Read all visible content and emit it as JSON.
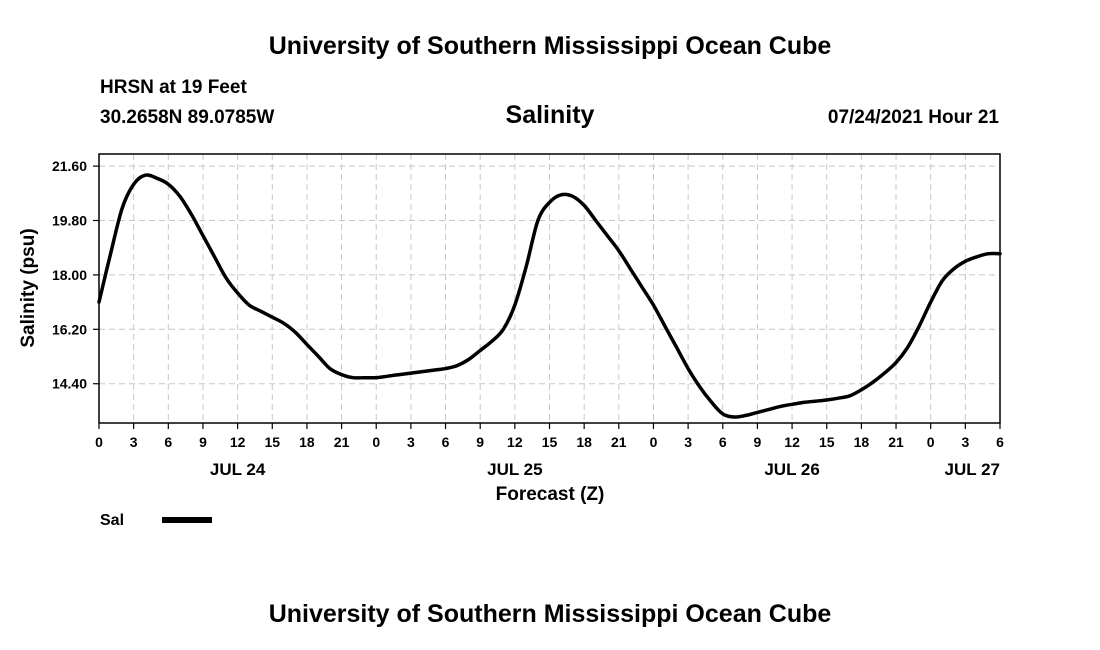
{
  "header": {
    "title_top": "University of Southern Mississippi Ocean Cube",
    "station": "HRSN at 19 Feet",
    "coords": "30.2658N  89.0785W",
    "chart_title": "Salinity",
    "timestamp": "07/24/2021 Hour 21",
    "title_bottom": "University of Southern Mississippi Ocean Cube"
  },
  "chart_data": {
    "type": "line",
    "title": "Salinity",
    "xlabel": "Forecast (Z)",
    "ylabel": "Salinity (psu)",
    "ylim": [
      13.1,
      22.0
    ],
    "xlim": [
      0,
      78
    ],
    "yticks": [
      14.4,
      16.2,
      18.0,
      19.8,
      21.6
    ],
    "ytick_labels": [
      "14.40",
      "16.20",
      "18.00",
      "19.80",
      "21.60"
    ],
    "xtick_labels": [
      "0",
      "3",
      "6",
      "9",
      "12",
      "15",
      "18",
      "21",
      "0",
      "3",
      "6",
      "9",
      "12",
      "15",
      "18",
      "21",
      "0",
      "3",
      "6",
      "9",
      "12",
      "15",
      "18",
      "21",
      "0",
      "3",
      "6"
    ],
    "date_labels": [
      {
        "label": "JUL 24",
        "hour": 12
      },
      {
        "label": "JUL 25",
        "hour": 36
      },
      {
        "label": "JUL 26",
        "hour": 60
      },
      {
        "label": "JUL 27",
        "hour": 78
      }
    ],
    "grid": true,
    "legend": "bottom-left",
    "series": [
      {
        "name": "Sal",
        "color": "#000000",
        "x": [
          0,
          1,
          2,
          3,
          4,
          5,
          6,
          7,
          8,
          9,
          10,
          11,
          12,
          13,
          14,
          15,
          16,
          17,
          18,
          19,
          20,
          21,
          22,
          23,
          24,
          25,
          26,
          27,
          28,
          29,
          30,
          31,
          32,
          33,
          34,
          35,
          36,
          37,
          38,
          39,
          40,
          41,
          42,
          43,
          44,
          45,
          46,
          47,
          48,
          49,
          50,
          51,
          52,
          53,
          54,
          55,
          56,
          57,
          58,
          59,
          60,
          61,
          62,
          63,
          64,
          65,
          66,
          67,
          68,
          69,
          70,
          71,
          72,
          73,
          74,
          75,
          76,
          77,
          78
        ],
        "values": [
          17.1,
          18.7,
          20.2,
          21.0,
          21.3,
          21.2,
          21.0,
          20.6,
          20.0,
          19.3,
          18.6,
          17.9,
          17.4,
          17.0,
          16.8,
          16.6,
          16.4,
          16.1,
          15.7,
          15.3,
          14.9,
          14.7,
          14.6,
          14.6,
          14.6,
          14.65,
          14.7,
          14.75,
          14.8,
          14.85,
          14.9,
          15.0,
          15.2,
          15.5,
          15.8,
          16.2,
          17.0,
          18.3,
          19.8,
          20.4,
          20.65,
          20.6,
          20.3,
          19.8,
          19.3,
          18.8,
          18.2,
          17.6,
          17.0,
          16.3,
          15.6,
          14.9,
          14.3,
          13.8,
          13.4,
          13.3,
          13.35,
          13.45,
          13.55,
          13.65,
          13.72,
          13.78,
          13.82,
          13.86,
          13.92,
          14.0,
          14.2,
          14.45,
          14.75,
          15.1,
          15.6,
          16.3,
          17.1,
          17.8,
          18.2,
          18.45,
          18.6,
          18.7,
          18.7
        ]
      }
    ]
  }
}
